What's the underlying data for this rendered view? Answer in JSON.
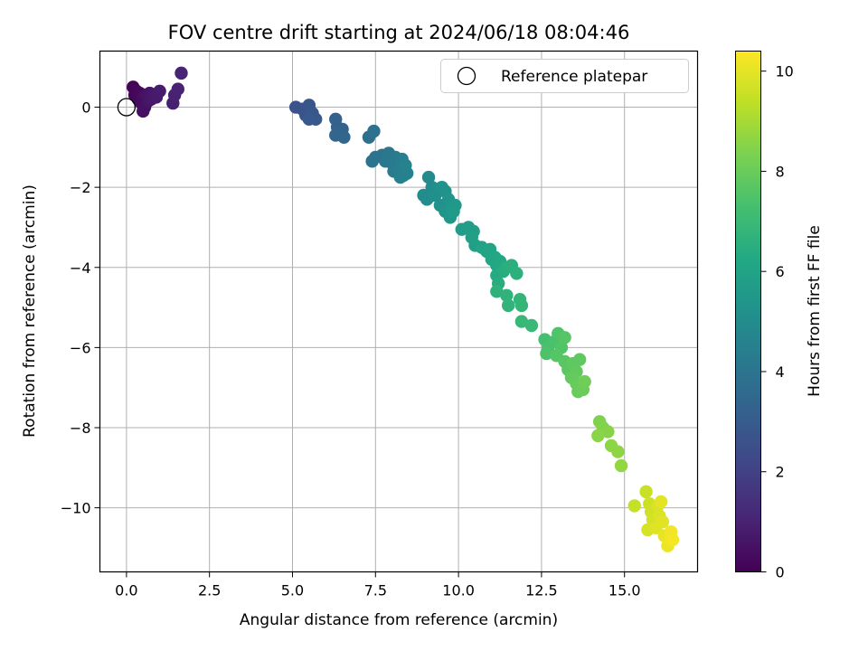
{
  "chart_data": {
    "type": "scatter",
    "title": "FOV centre drift starting at 2024/06/18 08:04:46",
    "xlabel": "Angular distance from reference (arcmin)",
    "ylabel": "Rotation from reference (arcmin)",
    "xlim": [
      -0.8,
      17.2
    ],
    "ylim": [
      -11.6,
      1.4
    ],
    "xticks": [
      0.0,
      2.5,
      5.0,
      7.5,
      10.0,
      12.5,
      15.0
    ],
    "xtick_labels": [
      "0.0",
      "2.5",
      "5.0",
      "7.5",
      "10.0",
      "12.5",
      "15.0"
    ],
    "yticks": [
      0,
      -2,
      -4,
      -6,
      -8,
      -10
    ],
    "ytick_labels": [
      "0",
      "−2",
      "−4",
      "−6",
      "−8",
      "−10"
    ],
    "grid": true,
    "colormap": "viridis",
    "colorbar": {
      "label": "Hours from first FF file",
      "range": [
        0,
        10.4
      ],
      "ticks": [
        0,
        2,
        4,
        6,
        8,
        10
      ],
      "tick_labels": [
        "0",
        "2",
        "4",
        "6",
        "8",
        "10"
      ]
    },
    "legend": {
      "position": "top-right",
      "entries": [
        {
          "label": "Reference platepar",
          "marker": "open-circle",
          "color": "#000000"
        }
      ]
    },
    "reference_point": {
      "x": 0.0,
      "y": 0.0
    },
    "points": [
      {
        "x": 0.2,
        "y": 0.5,
        "t": 0.05
      },
      {
        "x": 0.25,
        "y": 0.3,
        "t": 0.1
      },
      {
        "x": 0.3,
        "y": 0.4,
        "t": 0.15
      },
      {
        "x": 0.35,
        "y": 0.2,
        "t": 0.2
      },
      {
        "x": 0.4,
        "y": 0.35,
        "t": 0.25
      },
      {
        "x": 0.45,
        "y": 0.1,
        "t": 0.3
      },
      {
        "x": 0.5,
        "y": 0.25,
        "t": 0.35
      },
      {
        "x": 0.55,
        "y": 0.0,
        "t": 0.4
      },
      {
        "x": 0.5,
        "y": -0.1,
        "t": 0.45
      },
      {
        "x": 0.6,
        "y": 0.3,
        "t": 0.5
      },
      {
        "x": 0.65,
        "y": 0.15,
        "t": 0.55
      },
      {
        "x": 0.7,
        "y": 0.35,
        "t": 0.6
      },
      {
        "x": 0.75,
        "y": 0.2,
        "t": 0.65
      },
      {
        "x": 0.8,
        "y": 0.3,
        "t": 0.7
      },
      {
        "x": 0.9,
        "y": 0.25,
        "t": 0.75
      },
      {
        "x": 1.0,
        "y": 0.4,
        "t": 0.8
      },
      {
        "x": 1.4,
        "y": 0.1,
        "t": 0.9
      },
      {
        "x": 1.45,
        "y": 0.3,
        "t": 0.95
      },
      {
        "x": 1.55,
        "y": 0.45,
        "t": 1.0
      },
      {
        "x": 1.65,
        "y": 0.85,
        "t": 1.05
      },
      {
        "x": 5.1,
        "y": 0.0,
        "t": 2.6
      },
      {
        "x": 5.3,
        "y": -0.05,
        "t": 2.65
      },
      {
        "x": 5.4,
        "y": -0.2,
        "t": 2.7
      },
      {
        "x": 5.5,
        "y": 0.05,
        "t": 2.75
      },
      {
        "x": 5.6,
        "y": -0.15,
        "t": 2.8
      },
      {
        "x": 5.7,
        "y": -0.3,
        "t": 2.85
      },
      {
        "x": 5.5,
        "y": -0.3,
        "t": 2.9
      },
      {
        "x": 6.3,
        "y": -0.3,
        "t": 3.2
      },
      {
        "x": 6.35,
        "y": -0.5,
        "t": 3.25
      },
      {
        "x": 6.5,
        "y": -0.55,
        "t": 3.3
      },
      {
        "x": 6.3,
        "y": -0.7,
        "t": 3.35
      },
      {
        "x": 6.55,
        "y": -0.75,
        "t": 3.4
      },
      {
        "x": 7.3,
        "y": -0.75,
        "t": 3.8
      },
      {
        "x": 7.45,
        "y": -0.6,
        "t": 3.85
      },
      {
        "x": 7.5,
        "y": -1.25,
        "t": 3.9
      },
      {
        "x": 7.4,
        "y": -1.35,
        "t": 3.95
      },
      {
        "x": 7.7,
        "y": -1.2,
        "t": 4.0
      },
      {
        "x": 7.9,
        "y": -1.15,
        "t": 4.1
      },
      {
        "x": 7.8,
        "y": -1.35,
        "t": 4.15
      },
      {
        "x": 8.0,
        "y": -1.4,
        "t": 4.2
      },
      {
        "x": 8.1,
        "y": -1.25,
        "t": 4.25
      },
      {
        "x": 8.05,
        "y": -1.6,
        "t": 4.3
      },
      {
        "x": 8.2,
        "y": -1.55,
        "t": 4.35
      },
      {
        "x": 8.3,
        "y": -1.3,
        "t": 4.4
      },
      {
        "x": 8.35,
        "y": -1.7,
        "t": 4.45
      },
      {
        "x": 8.25,
        "y": -1.75,
        "t": 4.5
      },
      {
        "x": 8.45,
        "y": -1.65,
        "t": 4.55
      },
      {
        "x": 8.4,
        "y": -1.45,
        "t": 4.6
      },
      {
        "x": 9.1,
        "y": -1.75,
        "t": 4.9
      },
      {
        "x": 9.2,
        "y": -2.0,
        "t": 4.95
      },
      {
        "x": 8.95,
        "y": -2.2,
        "t": 5.0
      },
      {
        "x": 9.05,
        "y": -2.3,
        "t": 5.05
      },
      {
        "x": 9.35,
        "y": -2.05,
        "t": 5.1
      },
      {
        "x": 9.3,
        "y": -2.2,
        "t": 5.15
      },
      {
        "x": 9.45,
        "y": -2.45,
        "t": 5.2
      },
      {
        "x": 9.5,
        "y": -2.0,
        "t": 5.25
      },
      {
        "x": 9.6,
        "y": -2.1,
        "t": 5.3
      },
      {
        "x": 9.7,
        "y": -2.3,
        "t": 5.35
      },
      {
        "x": 9.6,
        "y": -2.6,
        "t": 5.4
      },
      {
        "x": 9.75,
        "y": -2.75,
        "t": 5.45
      },
      {
        "x": 9.8,
        "y": -2.5,
        "t": 5.5
      },
      {
        "x": 9.9,
        "y": -2.45,
        "t": 5.55
      },
      {
        "x": 9.85,
        "y": -2.6,
        "t": 5.6
      },
      {
        "x": 10.1,
        "y": -3.05,
        "t": 5.7
      },
      {
        "x": 10.3,
        "y": -3.0,
        "t": 5.75
      },
      {
        "x": 10.45,
        "y": -3.1,
        "t": 5.8
      },
      {
        "x": 10.4,
        "y": -3.25,
        "t": 5.85
      },
      {
        "x": 10.5,
        "y": -3.45,
        "t": 5.9
      },
      {
        "x": 10.7,
        "y": -3.5,
        "t": 5.95
      },
      {
        "x": 10.85,
        "y": -3.6,
        "t": 6.0
      },
      {
        "x": 10.95,
        "y": -3.55,
        "t": 6.05
      },
      {
        "x": 11.0,
        "y": -3.8,
        "t": 6.1
      },
      {
        "x": 11.1,
        "y": -3.75,
        "t": 6.15
      },
      {
        "x": 11.15,
        "y": -3.95,
        "t": 6.2
      },
      {
        "x": 11.25,
        "y": -3.85,
        "t": 6.25
      },
      {
        "x": 11.3,
        "y": -4.05,
        "t": 6.3
      },
      {
        "x": 11.15,
        "y": -4.2,
        "t": 6.35
      },
      {
        "x": 11.35,
        "y": -4.1,
        "t": 6.4
      },
      {
        "x": 11.2,
        "y": -4.4,
        "t": 6.45
      },
      {
        "x": 11.45,
        "y": -4.0,
        "t": 6.5
      },
      {
        "x": 11.6,
        "y": -3.95,
        "t": 6.55
      },
      {
        "x": 11.75,
        "y": -4.15,
        "t": 6.6
      },
      {
        "x": 11.15,
        "y": -4.6,
        "t": 6.65
      },
      {
        "x": 11.45,
        "y": -4.7,
        "t": 6.7
      },
      {
        "x": 11.5,
        "y": -4.95,
        "t": 6.75
      },
      {
        "x": 11.85,
        "y": -4.8,
        "t": 6.8
      },
      {
        "x": 11.9,
        "y": -4.95,
        "t": 6.85
      },
      {
        "x": 11.9,
        "y": -5.35,
        "t": 6.9
      },
      {
        "x": 12.2,
        "y": -5.45,
        "t": 6.95
      },
      {
        "x": 12.6,
        "y": -5.8,
        "t": 7.3
      },
      {
        "x": 12.7,
        "y": -6.0,
        "t": 7.35
      },
      {
        "x": 12.9,
        "y": -5.85,
        "t": 7.4
      },
      {
        "x": 12.65,
        "y": -6.15,
        "t": 7.45
      },
      {
        "x": 13.0,
        "y": -5.65,
        "t": 7.5
      },
      {
        "x": 13.1,
        "y": -6.0,
        "t": 7.55
      },
      {
        "x": 12.95,
        "y": -6.2,
        "t": 7.6
      },
      {
        "x": 13.2,
        "y": -5.75,
        "t": 7.65
      },
      {
        "x": 13.2,
        "y": -6.35,
        "t": 7.7
      },
      {
        "x": 13.3,
        "y": -6.55,
        "t": 7.75
      },
      {
        "x": 13.45,
        "y": -6.4,
        "t": 7.8
      },
      {
        "x": 13.55,
        "y": -6.6,
        "t": 7.85
      },
      {
        "x": 13.4,
        "y": -6.75,
        "t": 7.9
      },
      {
        "x": 13.55,
        "y": -6.9,
        "t": 7.95
      },
      {
        "x": 13.6,
        "y": -7.1,
        "t": 8.0
      },
      {
        "x": 13.75,
        "y": -7.05,
        "t": 8.05
      },
      {
        "x": 13.8,
        "y": -6.85,
        "t": 8.1
      },
      {
        "x": 13.65,
        "y": -6.3,
        "t": 7.8
      },
      {
        "x": 14.25,
        "y": -7.85,
        "t": 8.4
      },
      {
        "x": 14.35,
        "y": -8.0,
        "t": 8.45
      },
      {
        "x": 14.5,
        "y": -8.1,
        "t": 8.5
      },
      {
        "x": 14.2,
        "y": -8.2,
        "t": 8.55
      },
      {
        "x": 14.6,
        "y": -8.45,
        "t": 8.6
      },
      {
        "x": 14.8,
        "y": -8.6,
        "t": 8.65
      },
      {
        "x": 14.9,
        "y": -8.95,
        "t": 8.7
      },
      {
        "x": 15.3,
        "y": -9.95,
        "t": 9.5
      },
      {
        "x": 15.65,
        "y": -9.6,
        "t": 9.55
      },
      {
        "x": 15.75,
        "y": -9.9,
        "t": 9.6
      },
      {
        "x": 15.8,
        "y": -10.1,
        "t": 9.65
      },
      {
        "x": 15.85,
        "y": -10.3,
        "t": 9.7
      },
      {
        "x": 15.7,
        "y": -10.55,
        "t": 9.75
      },
      {
        "x": 16.0,
        "y": -9.95,
        "t": 9.8
      },
      {
        "x": 16.05,
        "y": -10.2,
        "t": 9.85
      },
      {
        "x": 15.95,
        "y": -10.5,
        "t": 9.9
      },
      {
        "x": 16.15,
        "y": -10.35,
        "t": 9.95
      },
      {
        "x": 16.1,
        "y": -9.85,
        "t": 10.0
      },
      {
        "x": 16.2,
        "y": -10.7,
        "t": 10.05
      },
      {
        "x": 16.3,
        "y": -10.95,
        "t": 10.1
      },
      {
        "x": 16.35,
        "y": -10.8,
        "t": 10.15
      },
      {
        "x": 16.4,
        "y": -10.6,
        "t": 10.2
      },
      {
        "x": 16.45,
        "y": -10.8,
        "t": 10.25
      }
    ]
  }
}
